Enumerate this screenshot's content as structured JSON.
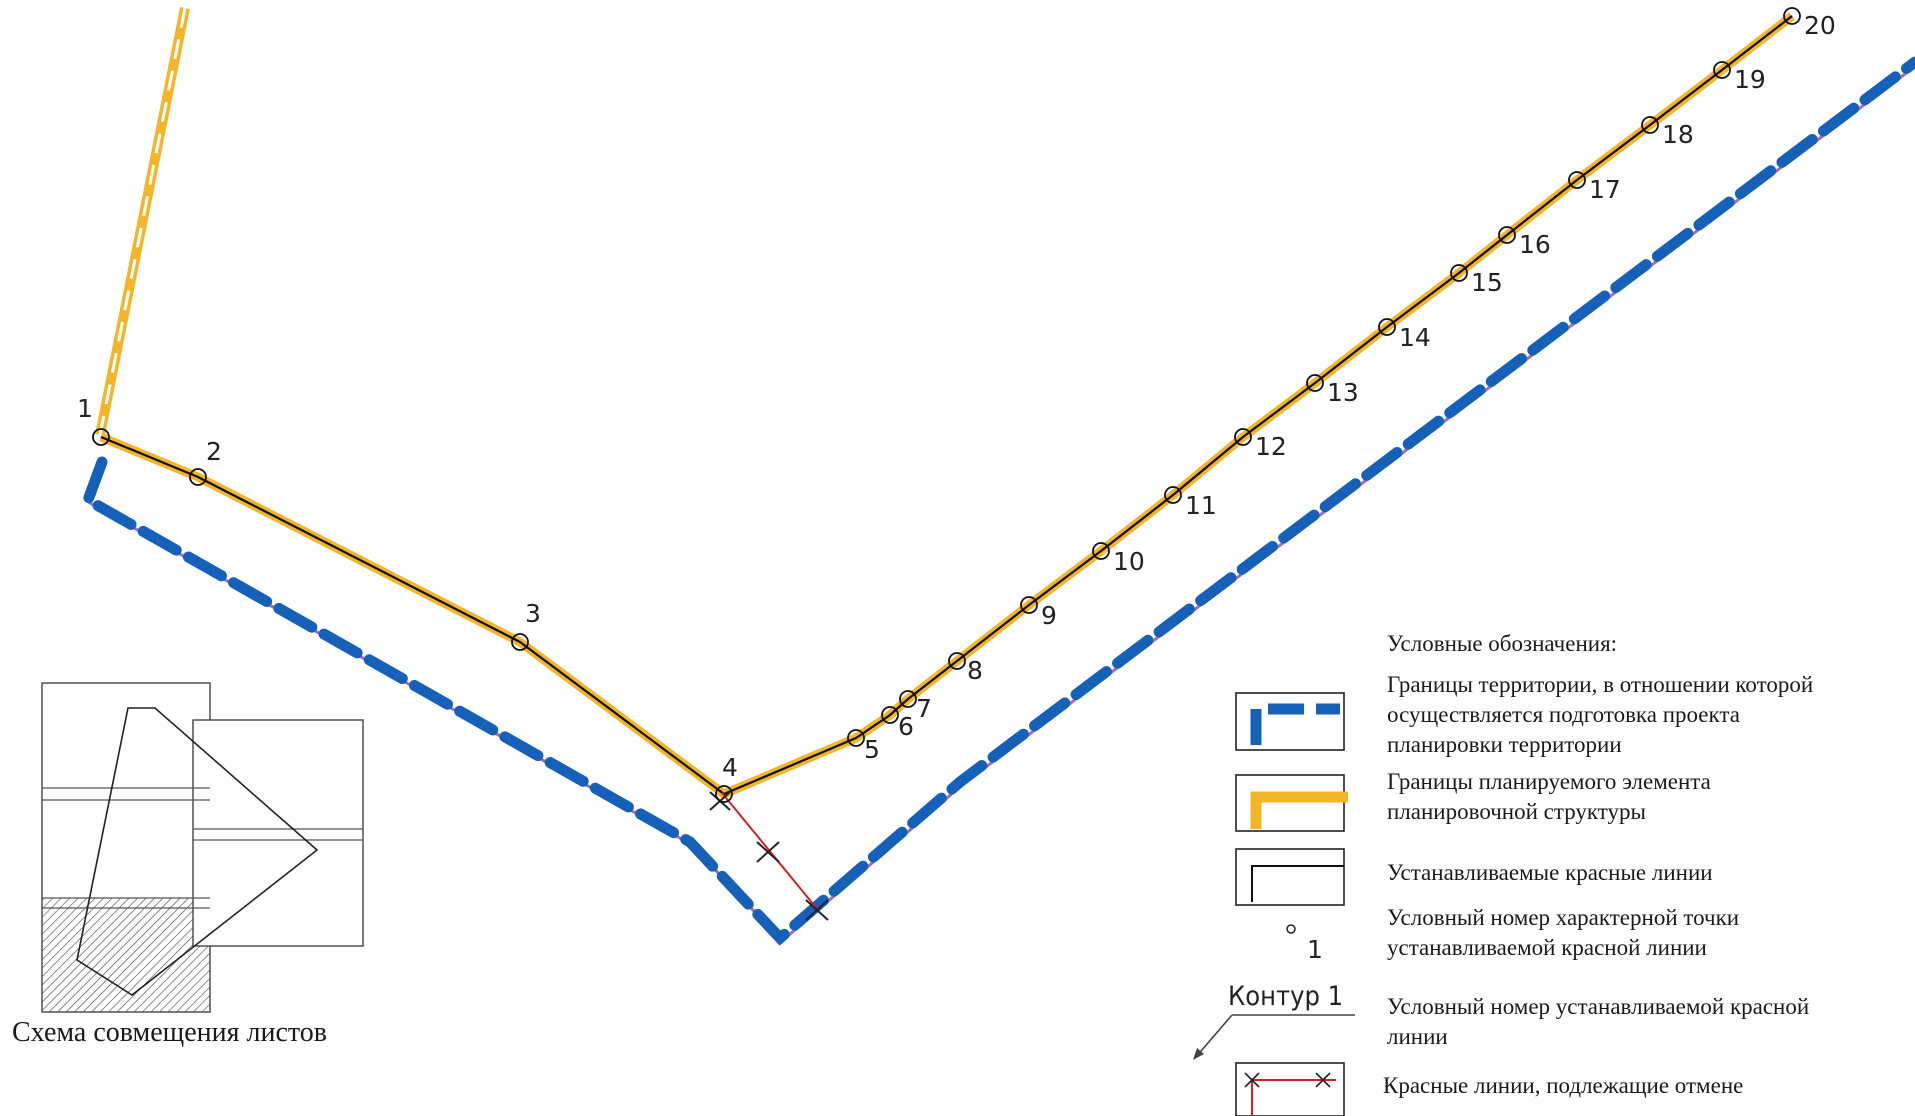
{
  "colors": {
    "territory_boundary": "#1560b8",
    "planning_element": "#f4b528",
    "red_line_set": "#111111",
    "red_line_cancel": "#d4202a",
    "shadow_purple": "#8a3a9a"
  },
  "points": [
    {
      "label": "1"
    },
    {
      "label": "2"
    },
    {
      "label": "3"
    },
    {
      "label": "4"
    },
    {
      "label": "5"
    },
    {
      "label": "6"
    },
    {
      "label": "7"
    },
    {
      "label": "8"
    },
    {
      "label": "9"
    },
    {
      "label": "10"
    },
    {
      "label": "11"
    },
    {
      "label": "12"
    },
    {
      "label": "13"
    },
    {
      "label": "14"
    },
    {
      "label": "15"
    },
    {
      "label": "16"
    },
    {
      "label": "17"
    },
    {
      "label": "18"
    },
    {
      "label": "19"
    },
    {
      "label": "20"
    }
  ],
  "legend": {
    "title": "Условные обозначения:",
    "items": [
      {
        "symbol": "territory-boundary",
        "lines": [
          "Границы территории, в отношении которой",
          "осуществляется подготовка проекта",
          "планировки территории"
        ]
      },
      {
        "symbol": "planning-element",
        "lines": [
          "Границы планируемого элемента",
          "планировочной структуры"
        ]
      },
      {
        "symbol": "red-line-set",
        "lines": [
          "Устанавливаемые красные линии"
        ]
      },
      {
        "symbol": "point-number",
        "sample": "1",
        "lines": [
          "Условный номер характерной точки",
          "устанавливаемой красной линии"
        ]
      },
      {
        "symbol": "contour-number",
        "sample": "Контур 1",
        "lines": [
          "Условный номер устанавливаемой красной",
          "линии"
        ]
      },
      {
        "symbol": "red-line-cancel",
        "lines": [
          "Красные линии, подлежащие отмене"
        ]
      }
    ]
  },
  "sheet_scheme": {
    "caption": "Схема совмещения листов"
  }
}
